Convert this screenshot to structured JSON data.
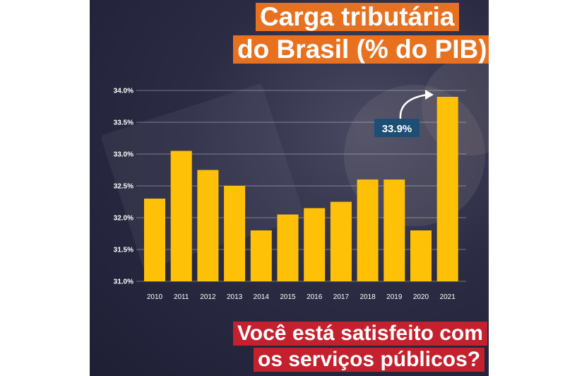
{
  "header": {
    "title_line1": "Carga tributária",
    "title_line2": "do Brasil (% do PIB):"
  },
  "footer": {
    "question_line1": "Você está satisfeito com",
    "question_line2": "os serviços públicos?"
  },
  "colors": {
    "bar": "#ffc107",
    "title_bg": "#e8711f",
    "question_bg": "#c4202e",
    "callout_bg": "#1d4e74",
    "background": "#2b2c44"
  },
  "chart_data": {
    "type": "bar",
    "categories": [
      "2010",
      "2011",
      "2012",
      "2013",
      "2014",
      "2015",
      "2016",
      "2017",
      "2018",
      "2019",
      "2020",
      "2021"
    ],
    "values": [
      32.3,
      33.05,
      32.75,
      32.5,
      31.8,
      32.05,
      32.15,
      32.25,
      32.6,
      32.6,
      31.8,
      33.9
    ],
    "ylim": [
      31.0,
      34.0
    ],
    "yticks": [
      31.0,
      31.5,
      32.0,
      32.5,
      33.0,
      33.5,
      34.0
    ],
    "ytick_labels": [
      "31.0%",
      "31.5%",
      "32.0%",
      "32.5%",
      "33.0%",
      "33.5%",
      "34.0%"
    ],
    "grid": true,
    "annotation": {
      "category": "2021",
      "text": "33.9%"
    }
  }
}
